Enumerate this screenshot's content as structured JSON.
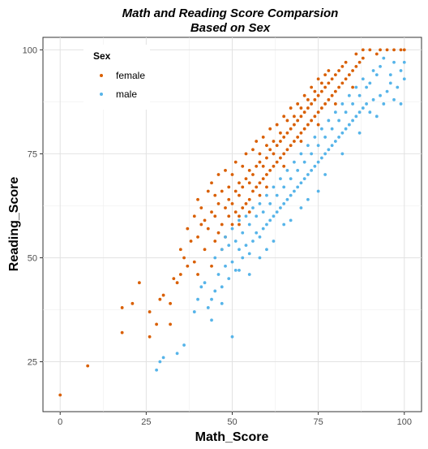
{
  "chart_data": {
    "type": "scatter",
    "title": [
      "Math and Reading Score Comparsion",
      "Based on Sex"
    ],
    "xlabel": "Math_Score",
    "ylabel": "Reading_Score",
    "xlim": [
      -5,
      105
    ],
    "ylim": [
      13,
      103
    ],
    "xticks": [
      0,
      25,
      50,
      75,
      100
    ],
    "yticks": [
      25,
      50,
      75,
      100
    ],
    "grid": true,
    "legend": {
      "title": "Sex",
      "placement": "top-left inside"
    },
    "series": [
      {
        "name": "female",
        "color": "#d95f02",
        "points": [
          [
            0,
            17
          ],
          [
            8,
            24
          ],
          [
            18,
            32
          ],
          [
            18,
            38
          ],
          [
            21,
            39
          ],
          [
            23,
            44
          ],
          [
            26,
            31
          ],
          [
            26,
            37
          ],
          [
            28,
            34
          ],
          [
            29,
            40
          ],
          [
            30,
            41
          ],
          [
            32,
            34
          ],
          [
            32,
            39
          ],
          [
            33,
            45
          ],
          [
            34,
            44
          ],
          [
            35,
            46
          ],
          [
            35,
            52
          ],
          [
            36,
            50
          ],
          [
            37,
            57
          ],
          [
            37,
            48
          ],
          [
            38,
            54
          ],
          [
            39,
            49
          ],
          [
            39,
            60
          ],
          [
            40,
            55
          ],
          [
            40,
            64
          ],
          [
            40,
            46
          ],
          [
            41,
            58
          ],
          [
            41,
            62
          ],
          [
            42,
            52
          ],
          [
            42,
            59
          ],
          [
            43,
            57
          ],
          [
            43,
            66
          ],
          [
            44,
            48
          ],
          [
            44,
            61
          ],
          [
            44,
            68
          ],
          [
            45,
            54
          ],
          [
            45,
            60
          ],
          [
            45,
            65
          ],
          [
            46,
            56
          ],
          [
            46,
            63
          ],
          [
            46,
            70
          ],
          [
            47,
            58
          ],
          [
            47,
            66
          ],
          [
            48,
            55
          ],
          [
            48,
            62
          ],
          [
            48,
            71
          ],
          [
            49,
            60
          ],
          [
            49,
            64
          ],
          [
            49,
            67
          ],
          [
            50,
            58
          ],
          [
            50,
            63
          ],
          [
            50,
            70
          ],
          [
            51,
            61
          ],
          [
            51,
            66
          ],
          [
            51,
            73
          ],
          [
            52,
            60
          ],
          [
            52,
            65
          ],
          [
            52,
            68
          ],
          [
            53,
            62
          ],
          [
            53,
            67
          ],
          [
            53,
            72
          ],
          [
            54,
            63
          ],
          [
            54,
            69
          ],
          [
            54,
            75
          ],
          [
            55,
            64
          ],
          [
            55,
            68
          ],
          [
            55,
            71
          ],
          [
            56,
            66
          ],
          [
            56,
            70
          ],
          [
            56,
            76
          ],
          [
            57,
            67
          ],
          [
            57,
            72
          ],
          [
            57,
            78
          ],
          [
            58,
            68
          ],
          [
            58,
            73
          ],
          [
            58,
            75
          ],
          [
            59,
            69
          ],
          [
            59,
            72
          ],
          [
            59,
            79
          ],
          [
            60,
            70
          ],
          [
            60,
            74
          ],
          [
            60,
            77
          ],
          [
            61,
            71
          ],
          [
            61,
            76
          ],
          [
            61,
            81
          ],
          [
            62,
            72
          ],
          [
            62,
            75
          ],
          [
            62,
            78
          ],
          [
            63,
            73
          ],
          [
            63,
            77
          ],
          [
            63,
            82
          ],
          [
            64,
            74
          ],
          [
            64,
            78
          ],
          [
            64,
            80
          ],
          [
            65,
            75
          ],
          [
            65,
            79
          ],
          [
            65,
            84
          ],
          [
            66,
            76
          ],
          [
            66,
            80
          ],
          [
            66,
            83
          ],
          [
            67,
            77
          ],
          [
            67,
            81
          ],
          [
            67,
            86
          ],
          [
            68,
            78
          ],
          [
            68,
            82
          ],
          [
            68,
            84
          ],
          [
            69,
            79
          ],
          [
            69,
            83
          ],
          [
            69,
            87
          ],
          [
            70,
            80
          ],
          [
            70,
            84
          ],
          [
            70,
            86
          ],
          [
            71,
            81
          ],
          [
            71,
            85
          ],
          [
            71,
            89
          ],
          [
            72,
            82
          ],
          [
            72,
            86
          ],
          [
            72,
            88
          ],
          [
            73,
            83
          ],
          [
            73,
            87
          ],
          [
            73,
            91
          ],
          [
            74,
            84
          ],
          [
            74,
            88
          ],
          [
            74,
            90
          ],
          [
            75,
            85
          ],
          [
            75,
            89
          ],
          [
            75,
            93
          ],
          [
            76,
            86
          ],
          [
            76,
            90
          ],
          [
            76,
            92
          ],
          [
            77,
            87
          ],
          [
            77,
            91
          ],
          [
            77,
            94
          ],
          [
            78,
            88
          ],
          [
            78,
            92
          ],
          [
            78,
            95
          ],
          [
            79,
            89
          ],
          [
            79,
            93
          ],
          [
            80,
            90
          ],
          [
            80,
            94
          ],
          [
            81,
            91
          ],
          [
            81,
            95
          ],
          [
            82,
            92
          ],
          [
            82,
            96
          ],
          [
            83,
            93
          ],
          [
            83,
            97
          ],
          [
            84,
            94
          ],
          [
            85,
            95
          ],
          [
            86,
            96
          ],
          [
            86,
            99
          ],
          [
            87,
            97
          ],
          [
            88,
            98
          ],
          [
            88,
            100
          ],
          [
            90,
            100
          ],
          [
            92,
            99
          ],
          [
            93,
            100
          ],
          [
            95,
            100
          ],
          [
            97,
            100
          ],
          [
            99,
            100
          ],
          [
            100,
            100
          ],
          [
            65,
            72
          ],
          [
            58,
            65
          ],
          [
            52,
            58
          ],
          [
            47,
            52
          ],
          [
            60,
            67
          ],
          [
            55,
            61
          ],
          [
            70,
            78
          ],
          [
            75,
            82
          ],
          [
            80,
            87
          ],
          [
            85,
            91
          ]
        ]
      },
      {
        "name": "male",
        "color": "#56b4e9",
        "points": [
          [
            28,
            23
          ],
          [
            29,
            25
          ],
          [
            30,
            26
          ],
          [
            34,
            27
          ],
          [
            36,
            29
          ],
          [
            39,
            37
          ],
          [
            40,
            40
          ],
          [
            41,
            43
          ],
          [
            42,
            44
          ],
          [
            43,
            38
          ],
          [
            44,
            35
          ],
          [
            45,
            42
          ],
          [
            45,
            50
          ],
          [
            46,
            46
          ],
          [
            47,
            52
          ],
          [
            47,
            39
          ],
          [
            48,
            48
          ],
          [
            48,
            55
          ],
          [
            49,
            45
          ],
          [
            49,
            53
          ],
          [
            50,
            31
          ],
          [
            50,
            49
          ],
          [
            50,
            57
          ],
          [
            51,
            47
          ],
          [
            51,
            54
          ],
          [
            52,
            52
          ],
          [
            52,
            59
          ],
          [
            53,
            50
          ],
          [
            53,
            56
          ],
          [
            54,
            53
          ],
          [
            54,
            60
          ],
          [
            55,
            51
          ],
          [
            55,
            58
          ],
          [
            56,
            54
          ],
          [
            56,
            62
          ],
          [
            57,
            56
          ],
          [
            57,
            60
          ],
          [
            58,
            55
          ],
          [
            58,
            63
          ],
          [
            59,
            57
          ],
          [
            59,
            61
          ],
          [
            60,
            58
          ],
          [
            60,
            65
          ],
          [
            61,
            59
          ],
          [
            61,
            63
          ],
          [
            62,
            60
          ],
          [
            62,
            67
          ],
          [
            63,
            61
          ],
          [
            63,
            65
          ],
          [
            64,
            62
          ],
          [
            64,
            69
          ],
          [
            65,
            63
          ],
          [
            65,
            67
          ],
          [
            66,
            64
          ],
          [
            66,
            71
          ],
          [
            67,
            65
          ],
          [
            67,
            69
          ],
          [
            68,
            66
          ],
          [
            68,
            73
          ],
          [
            69,
            67
          ],
          [
            69,
            71
          ],
          [
            70,
            68
          ],
          [
            70,
            75
          ],
          [
            71,
            69
          ],
          [
            71,
            73
          ],
          [
            72,
            70
          ],
          [
            72,
            77
          ],
          [
            73,
            71
          ],
          [
            73,
            75
          ],
          [
            74,
            72
          ],
          [
            74,
            79
          ],
          [
            75,
            73
          ],
          [
            75,
            77
          ],
          [
            76,
            74
          ],
          [
            76,
            81
          ],
          [
            77,
            75
          ],
          [
            77,
            79
          ],
          [
            78,
            76
          ],
          [
            78,
            83
          ],
          [
            79,
            77
          ],
          [
            79,
            81
          ],
          [
            80,
            78
          ],
          [
            80,
            85
          ],
          [
            81,
            79
          ],
          [
            81,
            83
          ],
          [
            82,
            80
          ],
          [
            82,
            87
          ],
          [
            83,
            81
          ],
          [
            83,
            85
          ],
          [
            84,
            82
          ],
          [
            84,
            89
          ],
          [
            85,
            83
          ],
          [
            85,
            87
          ],
          [
            86,
            84
          ],
          [
            86,
            91
          ],
          [
            87,
            85
          ],
          [
            87,
            89
          ],
          [
            88,
            86
          ],
          [
            88,
            93
          ],
          [
            89,
            87
          ],
          [
            89,
            91
          ],
          [
            90,
            85
          ],
          [
            90,
            92
          ],
          [
            91,
            88
          ],
          [
            91,
            95
          ],
          [
            92,
            84
          ],
          [
            92,
            94
          ],
          [
            93,
            89
          ],
          [
            93,
            96
          ],
          [
            94,
            87
          ],
          [
            94,
            98
          ],
          [
            95,
            90
          ],
          [
            96,
            92
          ],
          [
            96,
            94
          ],
          [
            97,
            88
          ],
          [
            97,
            97
          ],
          [
            98,
            91
          ],
          [
            99,
            87
          ],
          [
            99,
            95
          ],
          [
            100,
            93
          ],
          [
            100,
            97
          ],
          [
            55,
            46
          ],
          [
            60,
            52
          ],
          [
            65,
            58
          ],
          [
            70,
            62
          ],
          [
            75,
            66
          ],
          [
            58,
            50
          ],
          [
            62,
            54
          ],
          [
            67,
            59
          ],
          [
            72,
            64
          ],
          [
            77,
            70
          ],
          [
            82,
            75
          ],
          [
            87,
            80
          ],
          [
            47,
            43
          ],
          [
            52,
            47
          ],
          [
            44,
            40
          ]
        ]
      }
    ]
  }
}
